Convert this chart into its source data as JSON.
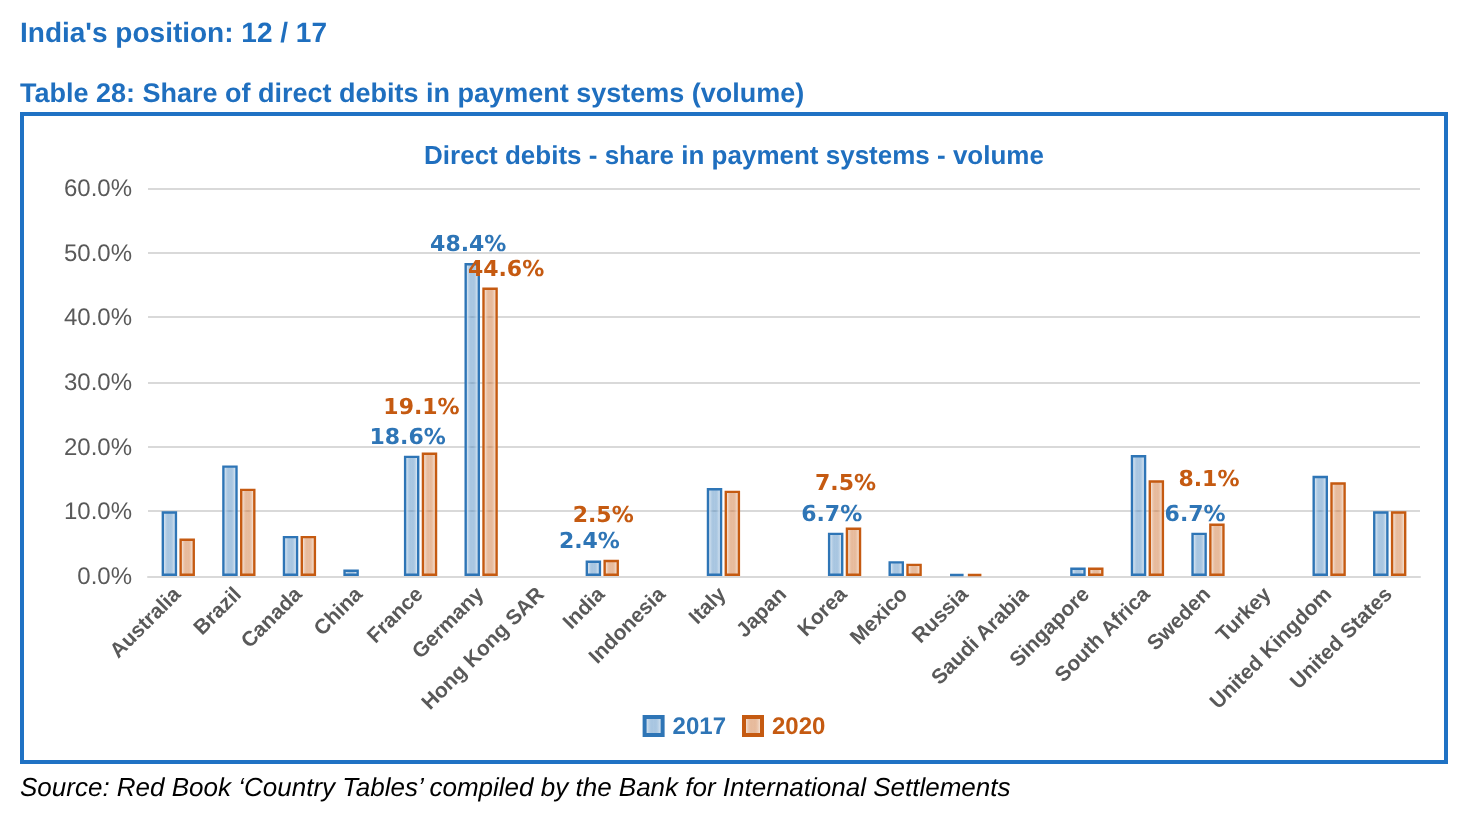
{
  "chart_data": {
    "type": "bar",
    "title": "Direct debits - share in payment systems - volume",
    "annotations": [
      "India's position: 12 / 17",
      "Table 28: Share of direct debits in payment systems (volume)",
      "Source: Red Book ‘Country Tables’ compiled by the Bank for International Settlements"
    ],
    "categories": [
      "Australia",
      "Brazil",
      "Canada",
      "China",
      "France",
      "Germany",
      "Hong Kong SAR",
      "India",
      "Indonesia",
      "Italy",
      "Japan",
      "Korea",
      "Mexico",
      "Russia",
      "Saudi Arabia",
      "Singapore",
      "South Africa",
      "Sweden",
      "Turkey",
      "United Kingdom",
      "United States"
    ],
    "series": [
      {
        "name": "2017",
        "color": "#2e75b6",
        "values": [
          10.0,
          17.1,
          6.2,
          1.0,
          18.6,
          48.4,
          null,
          2.4,
          null,
          13.6,
          null,
          6.7,
          2.3,
          0.3,
          null,
          1.3,
          18.7,
          6.7,
          null,
          15.5,
          10.0
        ],
        "value_labels": [
          null,
          null,
          null,
          null,
          "18.6%",
          "48.4%",
          null,
          "2.4%",
          null,
          null,
          null,
          "6.7%",
          null,
          null,
          null,
          null,
          null,
          "6.7%",
          null,
          null,
          null
        ]
      },
      {
        "name": "2020",
        "color": "#c55a11",
        "values": [
          5.8,
          13.5,
          6.2,
          null,
          19.1,
          44.6,
          null,
          2.5,
          null,
          13.2,
          null,
          7.5,
          1.9,
          0.3,
          null,
          1.3,
          14.8,
          8.1,
          null,
          14.5,
          10.0
        ],
        "value_labels": [
          null,
          null,
          null,
          null,
          "19.1%",
          "44.6%",
          null,
          "2.5%",
          null,
          null,
          null,
          "7.5%",
          null,
          null,
          null,
          null,
          null,
          "8.1%",
          null,
          null,
          null
        ]
      }
    ],
    "ylim": [
      0,
      60
    ],
    "yticks": [
      {
        "value": 0,
        "label": "0.0%"
      },
      {
        "value": 10,
        "label": "10.0%"
      },
      {
        "value": 20,
        "label": "20.0%"
      },
      {
        "value": 30,
        "label": "30.0%"
      },
      {
        "value": 40,
        "label": "40.0%"
      },
      {
        "value": 50,
        "label": "50.0%"
      },
      {
        "value": 60,
        "label": "60.0%"
      }
    ],
    "grid": "y",
    "legend": "bottom"
  }
}
